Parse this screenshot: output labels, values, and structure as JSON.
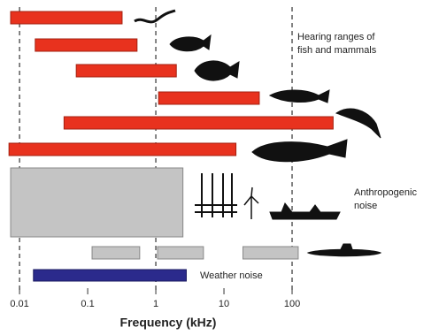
{
  "chart_data": {
    "type": "range-bar",
    "xlabel": "Frequency (kHz)",
    "xscale": "log",
    "xlim": [
      0.006,
      1000
    ],
    "xticks": [
      0.01,
      0.1,
      1,
      10,
      100
    ],
    "dashed_lines": [
      0.01,
      1,
      100
    ],
    "series": [
      {
        "label_lines": [
          "Hearing ranges of",
          "fish and mammals"
        ],
        "color": "#e8321e",
        "ranges": [
          [
            0.0074,
            0.32
          ],
          [
            0.017,
            0.53
          ],
          [
            0.068,
            2.0
          ],
          [
            1.1,
            33
          ],
          [
            0.045,
            400
          ],
          [
            0.007,
            15
          ]
        ]
      },
      {
        "label_lines": [
          "Anthropogenic",
          "noise"
        ],
        "color": "#c4c4c4",
        "ranges": [
          [
            0.0074,
            2.5
          ],
          [
            0.116,
            0.58
          ],
          [
            1.06,
            5
          ],
          [
            19,
            123
          ]
        ]
      },
      {
        "label_lines": [
          "Weather noise"
        ],
        "color": "#2b2a8c",
        "ranges": [
          [
            0.016,
            2.8
          ]
        ]
      }
    ]
  }
}
